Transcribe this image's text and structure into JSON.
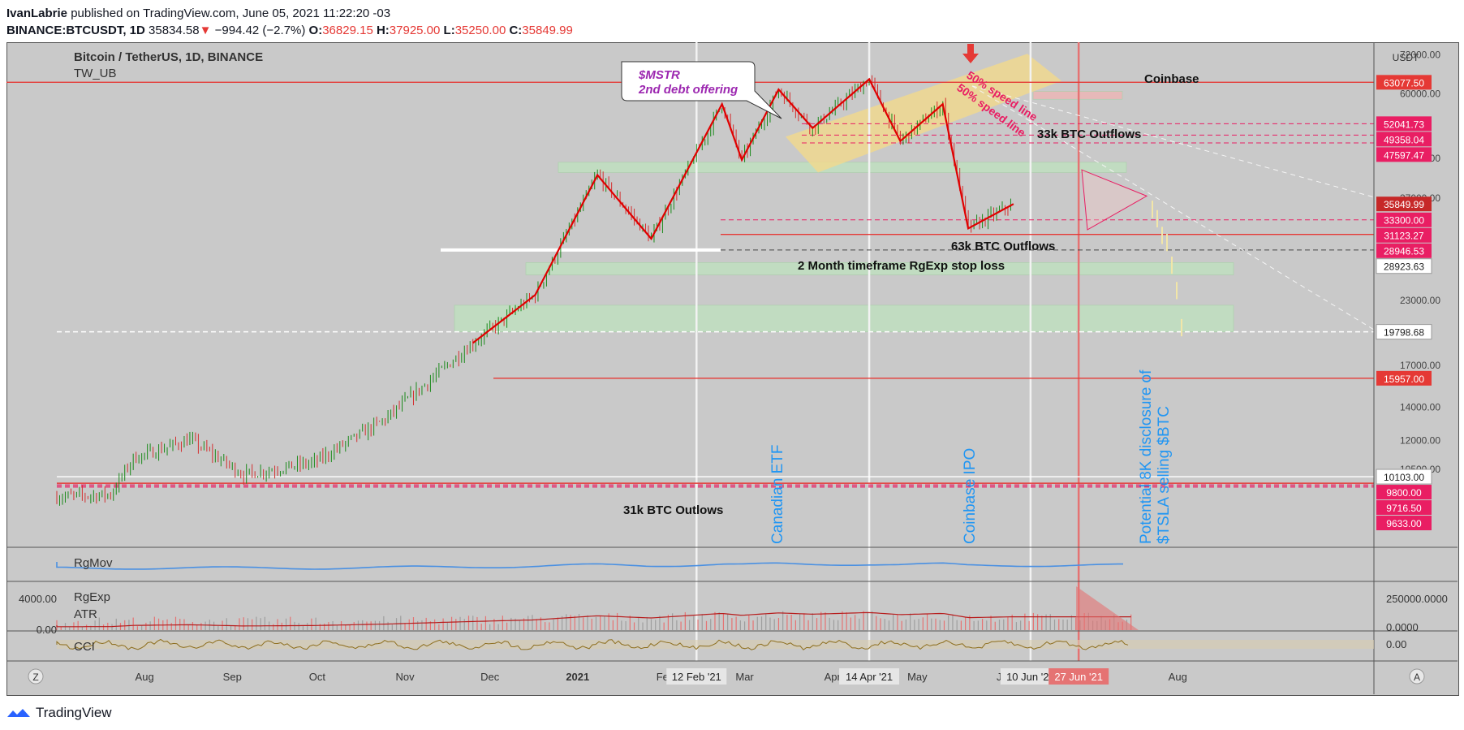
{
  "header": {
    "author": "IvanLabrie",
    "published_text": " published on TradingView.com, June 05, 2021 11:22:20 -03",
    "symbol": "BINANCE:BTCUSDT, 1D",
    "last": "35834.58",
    "change": "−994.42 (−2.7%)",
    "o_label": "O:",
    "o": "36829.15",
    "h_label": "H:",
    "h": "37925.00",
    "l_label": "L:",
    "l": "35250.00",
    "c_label": "C:",
    "c": "35849.99"
  },
  "legend": {
    "title": "Bitcoin / TetherUS, 1D, BINANCE",
    "indicator": "TW_UB"
  },
  "footer": {
    "brand": "TradingView"
  },
  "colors": {
    "up": "#1b8a1b",
    "down": "#d32f2f",
    "wave": "#e00000",
    "bg": "#c9c9c9",
    "label_red": "#e91e63",
    "blue_text": "#2196f3"
  },
  "chart_data": {
    "type": "line",
    "title": "Bitcoin / TetherUS, 1D, BINANCE",
    "currency": "USDT",
    "y_scale": "log",
    "ylim": [
      9300,
      74000
    ],
    "x_labels": [
      "Aug",
      "Sep",
      "Oct",
      "Nov",
      "Dec",
      "2021",
      "Feb",
      "Mar",
      "Apr",
      "May",
      "Jun",
      "Aug"
    ],
    "date_badges": [
      "12 Feb '21",
      "14 Apr '21",
      "10 Jun '21",
      "27 Jun '21"
    ],
    "y_ticks": [
      "72000.00",
      "60000.00",
      "44500.00",
      "37000.00",
      "23000.00",
      "17000.00",
      "14000.00",
      "12000.00",
      "10500.00"
    ],
    "price_labels": [
      {
        "value": "63077.50",
        "kind": "red"
      },
      {
        "value": "52041.73",
        "kind": "pink"
      },
      {
        "value": "49358.04",
        "kind": "pink"
      },
      {
        "value": "47597.47",
        "kind": "pink"
      },
      {
        "value": "35849.99",
        "kind": "dark"
      },
      {
        "value": "33300.00",
        "kind": "pink"
      },
      {
        "value": "31123.27",
        "kind": "pink"
      },
      {
        "value": "28946.53",
        "kind": "pink"
      },
      {
        "value": "28923.63",
        "kind": "white"
      },
      {
        "value": "19798.68",
        "kind": "white"
      },
      {
        "value": "15957.00",
        "kind": "red"
      },
      {
        "value": "10103.00",
        "kind": "white"
      },
      {
        "value": "9800.00",
        "kind": "pink"
      },
      {
        "value": "9716.50",
        "kind": "pink"
      },
      {
        "value": "9633.00",
        "kind": "pink"
      }
    ],
    "series": [
      {
        "name": "",
        "x": [
          "2020-07-01",
          "2020-07-20",
          "2020-07-28",
          "2020-08-17",
          "2020-09-05",
          "2020-09-30",
          "2020-10-25",
          "2020-11-25",
          "2020-12-17",
          "2021-01-08",
          "2021-01-27",
          "2021-02-21",
          "2021-02-28",
          "2021-03-13",
          "2021-03-25",
          "2021-04-14",
          "2021-04-25",
          "2021-05-10",
          "2021-05-19",
          "2021-06-04"
        ],
        "y": [
          9200,
          9300,
          11000,
          12000,
          10200,
          10800,
          13200,
          18800,
          23500,
          41000,
          30500,
          57000,
          44000,
          61000,
          51000,
          64000,
          48000,
          57000,
          32000,
          35850
        ]
      }
    ],
    "annotations": [
      {
        "text": "$MSTR",
        "kind": "callout"
      },
      {
        "text": "2nd debt offering",
        "kind": "callout"
      },
      {
        "text": "Coinbase",
        "kind": "label"
      },
      {
        "text": "33k BTC Outflows",
        "kind": "label"
      },
      {
        "text": "63k BTC Outflows",
        "kind": "label"
      },
      {
        "text": "2 Month timeframe RgExp stop loss",
        "kind": "label"
      },
      {
        "text": "31k BTC Outlows",
        "kind": "label"
      },
      {
        "text": "Canadian ETF",
        "kind": "vertical"
      },
      {
        "text": "Coinbase IPO",
        "kind": "vertical"
      },
      {
        "text": "Potential 8K disclosure of",
        "kind": "vertical"
      },
      {
        "text": "$TSLA selling $BTC",
        "kind": "vertical"
      },
      {
        "text": "50% speed line",
        "kind": "angled"
      },
      {
        "text": "50% speed line",
        "kind": "angled"
      }
    ],
    "panes": [
      {
        "name": "RgMov",
        "kind": "line"
      },
      {
        "name": "RgExp",
        "kind": "histogram",
        "left_ticks": [
          "4000.00",
          "0.00"
        ],
        "right_ticks": [
          "250000.0000",
          "0.0000"
        ]
      },
      {
        "name": "ATR",
        "kind": "line"
      },
      {
        "name": "CCI",
        "kind": "line",
        "right_ticks": [
          "0.00"
        ]
      }
    ],
    "axis_buttons": [
      "Z",
      "A"
    ]
  }
}
